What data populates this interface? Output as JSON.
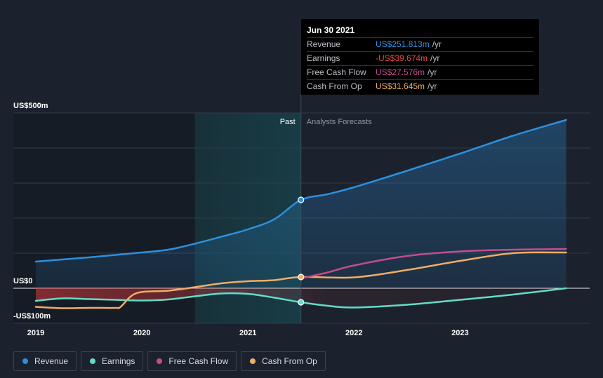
{
  "tooltip": {
    "date": "Jun 30 2021",
    "rows": [
      {
        "label": "Revenue",
        "value": "US$251.813m",
        "unit": "/yr",
        "color": "#2d8fde"
      },
      {
        "label": "Earnings",
        "value": "-US$39.674m",
        "unit": "/yr",
        "color": "#e34948"
      },
      {
        "label": "Free Cash Flow",
        "value": "US$27.576m",
        "unit": "/yr",
        "color": "#c34d8c"
      },
      {
        "label": "Cash From Op",
        "value": "US$31.645m",
        "unit": "/yr",
        "color": "#f0ad66"
      }
    ]
  },
  "section_labels": {
    "past": "Past",
    "forecast": "Analysts Forecasts"
  },
  "legend": [
    {
      "label": "Revenue",
      "color": "#2d8fde"
    },
    {
      "label": "Earnings",
      "color": "#63dcc8"
    },
    {
      "label": "Free Cash Flow",
      "color": "#c34d8c"
    },
    {
      "label": "Cash From Op",
      "color": "#f0ad66"
    }
  ],
  "chart_data": {
    "type": "line",
    "y_tick_labels": [
      {
        "value": 500,
        "label": "US$500m"
      },
      {
        "value": 0,
        "label": "US$0"
      },
      {
        "value": -100,
        "label": "-US$100m"
      }
    ],
    "ylim": [
      -100,
      500
    ],
    "xlim": [
      2019,
      2024.01
    ],
    "x_tick_labels": [
      {
        "value": 2019,
        "label": "2019"
      },
      {
        "value": 2020,
        "label": "2020"
      },
      {
        "value": 2021,
        "label": "2021"
      },
      {
        "value": 2022,
        "label": "2022"
      },
      {
        "value": 2023,
        "label": "2023"
      }
    ],
    "grid": true,
    "highlight_range": [
      2020.5,
      2021.5
    ],
    "past_end": 2021.5,
    "series": [
      {
        "name": "Revenue",
        "color": "#2d8fde",
        "fill": true,
        "x": [
          2019.0,
          2019.25,
          2019.5,
          2019.75,
          2020.0,
          2020.25,
          2020.5,
          2020.75,
          2021.0,
          2021.25,
          2021.5,
          2021.75,
          2022.0,
          2022.5,
          2023.0,
          2023.5,
          2024.0
        ],
        "y": [
          76,
          82,
          88,
          95,
          102,
          110,
          127,
          147,
          168,
          197,
          252,
          268,
          288,
          335,
          384,
          435,
          480
        ]
      },
      {
        "name": "Earnings",
        "color": "#63dcc8",
        "fill": false,
        "x": [
          2019.0,
          2019.25,
          2019.5,
          2019.75,
          2020.0,
          2020.25,
          2020.5,
          2020.75,
          2021.0,
          2021.25,
          2021.5,
          2021.75,
          2022.0,
          2022.5,
          2023.0,
          2023.5,
          2024.0
        ],
        "y": [
          -36,
          -29,
          -31,
          -33,
          -35,
          -32,
          -23,
          -15,
          -16,
          -27,
          -40,
          -50,
          -55,
          -47,
          -33,
          -18,
          0
        ]
      },
      {
        "name": "Free Cash Flow",
        "color": "#c34d8c",
        "fill": false,
        "x": [
          2021.5,
          2021.75,
          2022.0,
          2022.5,
          2023.0,
          2023.5,
          2024.0
        ],
        "y": [
          28,
          45,
          65,
          92,
          105,
          110,
          112
        ]
      },
      {
        "name": "Cash From Op",
        "color": "#f0ad66",
        "fill": false,
        "x": [
          2019.0,
          2019.25,
          2019.5,
          2019.75,
          2019.8,
          2019.95,
          2020.25,
          2020.5,
          2020.75,
          2021.0,
          2021.25,
          2021.5,
          2022.0,
          2022.5,
          2023.0,
          2023.5,
          2024.0
        ],
        "y": [
          -53,
          -57,
          -56,
          -56,
          -53,
          -14,
          -7,
          3,
          14,
          20,
          23,
          32,
          31,
          52,
          78,
          100,
          102
        ]
      }
    ],
    "markers": [
      {
        "x": 2021.5,
        "y": 252,
        "color": "#2d8fde"
      },
      {
        "x": 2021.5,
        "y": -40,
        "color": "#63dcc8"
      },
      {
        "x": 2021.5,
        "y": 32,
        "color": "#f0ad66"
      }
    ]
  }
}
